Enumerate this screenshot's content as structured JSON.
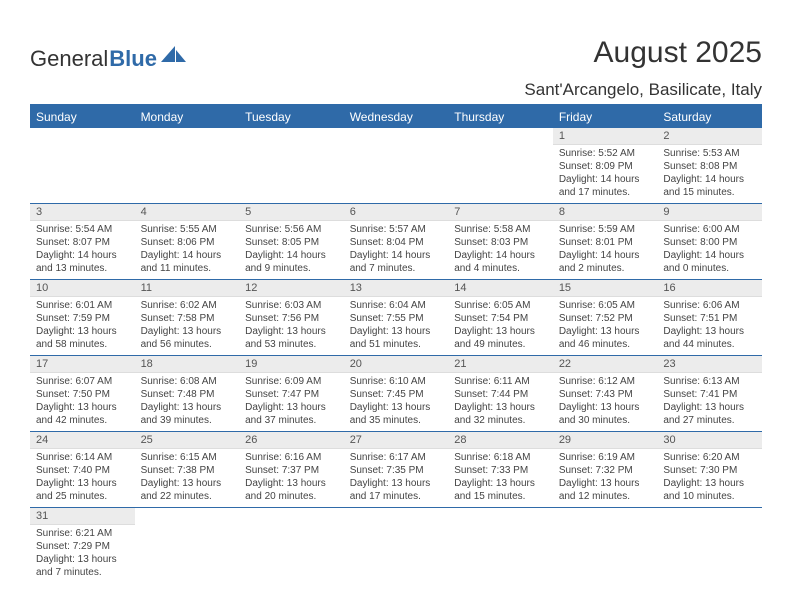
{
  "brand": {
    "part1": "General",
    "part2": "Blue"
  },
  "title": "August 2025",
  "location": "Sant'Arcangelo, Basilicate, Italy",
  "colors": {
    "header_bg": "#2f6aa8",
    "header_fg": "#ffffff",
    "daynum_bg": "#ececec",
    "border": "#2f6aa8"
  },
  "dayHeaders": [
    "Sunday",
    "Monday",
    "Tuesday",
    "Wednesday",
    "Thursday",
    "Friday",
    "Saturday"
  ],
  "weeks": [
    [
      {
        "empty": true
      },
      {
        "empty": true
      },
      {
        "empty": true
      },
      {
        "empty": true
      },
      {
        "empty": true
      },
      {
        "num": "1",
        "sunrise": "Sunrise: 5:52 AM",
        "sunset": "Sunset: 8:09 PM",
        "daylight": "Daylight: 14 hours and 17 minutes."
      },
      {
        "num": "2",
        "sunrise": "Sunrise: 5:53 AM",
        "sunset": "Sunset: 8:08 PM",
        "daylight": "Daylight: 14 hours and 15 minutes."
      }
    ],
    [
      {
        "num": "3",
        "sunrise": "Sunrise: 5:54 AM",
        "sunset": "Sunset: 8:07 PM",
        "daylight": "Daylight: 14 hours and 13 minutes."
      },
      {
        "num": "4",
        "sunrise": "Sunrise: 5:55 AM",
        "sunset": "Sunset: 8:06 PM",
        "daylight": "Daylight: 14 hours and 11 minutes."
      },
      {
        "num": "5",
        "sunrise": "Sunrise: 5:56 AM",
        "sunset": "Sunset: 8:05 PM",
        "daylight": "Daylight: 14 hours and 9 minutes."
      },
      {
        "num": "6",
        "sunrise": "Sunrise: 5:57 AM",
        "sunset": "Sunset: 8:04 PM",
        "daylight": "Daylight: 14 hours and 7 minutes."
      },
      {
        "num": "7",
        "sunrise": "Sunrise: 5:58 AM",
        "sunset": "Sunset: 8:03 PM",
        "daylight": "Daylight: 14 hours and 4 minutes."
      },
      {
        "num": "8",
        "sunrise": "Sunrise: 5:59 AM",
        "sunset": "Sunset: 8:01 PM",
        "daylight": "Daylight: 14 hours and 2 minutes."
      },
      {
        "num": "9",
        "sunrise": "Sunrise: 6:00 AM",
        "sunset": "Sunset: 8:00 PM",
        "daylight": "Daylight: 14 hours and 0 minutes."
      }
    ],
    [
      {
        "num": "10",
        "sunrise": "Sunrise: 6:01 AM",
        "sunset": "Sunset: 7:59 PM",
        "daylight": "Daylight: 13 hours and 58 minutes."
      },
      {
        "num": "11",
        "sunrise": "Sunrise: 6:02 AM",
        "sunset": "Sunset: 7:58 PM",
        "daylight": "Daylight: 13 hours and 56 minutes."
      },
      {
        "num": "12",
        "sunrise": "Sunrise: 6:03 AM",
        "sunset": "Sunset: 7:56 PM",
        "daylight": "Daylight: 13 hours and 53 minutes."
      },
      {
        "num": "13",
        "sunrise": "Sunrise: 6:04 AM",
        "sunset": "Sunset: 7:55 PM",
        "daylight": "Daylight: 13 hours and 51 minutes."
      },
      {
        "num": "14",
        "sunrise": "Sunrise: 6:05 AM",
        "sunset": "Sunset: 7:54 PM",
        "daylight": "Daylight: 13 hours and 49 minutes."
      },
      {
        "num": "15",
        "sunrise": "Sunrise: 6:05 AM",
        "sunset": "Sunset: 7:52 PM",
        "daylight": "Daylight: 13 hours and 46 minutes."
      },
      {
        "num": "16",
        "sunrise": "Sunrise: 6:06 AM",
        "sunset": "Sunset: 7:51 PM",
        "daylight": "Daylight: 13 hours and 44 minutes."
      }
    ],
    [
      {
        "num": "17",
        "sunrise": "Sunrise: 6:07 AM",
        "sunset": "Sunset: 7:50 PM",
        "daylight": "Daylight: 13 hours and 42 minutes."
      },
      {
        "num": "18",
        "sunrise": "Sunrise: 6:08 AM",
        "sunset": "Sunset: 7:48 PM",
        "daylight": "Daylight: 13 hours and 39 minutes."
      },
      {
        "num": "19",
        "sunrise": "Sunrise: 6:09 AM",
        "sunset": "Sunset: 7:47 PM",
        "daylight": "Daylight: 13 hours and 37 minutes."
      },
      {
        "num": "20",
        "sunrise": "Sunrise: 6:10 AM",
        "sunset": "Sunset: 7:45 PM",
        "daylight": "Daylight: 13 hours and 35 minutes."
      },
      {
        "num": "21",
        "sunrise": "Sunrise: 6:11 AM",
        "sunset": "Sunset: 7:44 PM",
        "daylight": "Daylight: 13 hours and 32 minutes."
      },
      {
        "num": "22",
        "sunrise": "Sunrise: 6:12 AM",
        "sunset": "Sunset: 7:43 PM",
        "daylight": "Daylight: 13 hours and 30 minutes."
      },
      {
        "num": "23",
        "sunrise": "Sunrise: 6:13 AM",
        "sunset": "Sunset: 7:41 PM",
        "daylight": "Daylight: 13 hours and 27 minutes."
      }
    ],
    [
      {
        "num": "24",
        "sunrise": "Sunrise: 6:14 AM",
        "sunset": "Sunset: 7:40 PM",
        "daylight": "Daylight: 13 hours and 25 minutes."
      },
      {
        "num": "25",
        "sunrise": "Sunrise: 6:15 AM",
        "sunset": "Sunset: 7:38 PM",
        "daylight": "Daylight: 13 hours and 22 minutes."
      },
      {
        "num": "26",
        "sunrise": "Sunrise: 6:16 AM",
        "sunset": "Sunset: 7:37 PM",
        "daylight": "Daylight: 13 hours and 20 minutes."
      },
      {
        "num": "27",
        "sunrise": "Sunrise: 6:17 AM",
        "sunset": "Sunset: 7:35 PM",
        "daylight": "Daylight: 13 hours and 17 minutes."
      },
      {
        "num": "28",
        "sunrise": "Sunrise: 6:18 AM",
        "sunset": "Sunset: 7:33 PM",
        "daylight": "Daylight: 13 hours and 15 minutes."
      },
      {
        "num": "29",
        "sunrise": "Sunrise: 6:19 AM",
        "sunset": "Sunset: 7:32 PM",
        "daylight": "Daylight: 13 hours and 12 minutes."
      },
      {
        "num": "30",
        "sunrise": "Sunrise: 6:20 AM",
        "sunset": "Sunset: 7:30 PM",
        "daylight": "Daylight: 13 hours and 10 minutes."
      }
    ],
    [
      {
        "num": "31",
        "sunrise": "Sunrise: 6:21 AM",
        "sunset": "Sunset: 7:29 PM",
        "daylight": "Daylight: 13 hours and 7 minutes."
      },
      {
        "empty": true
      },
      {
        "empty": true
      },
      {
        "empty": true
      },
      {
        "empty": true
      },
      {
        "empty": true
      },
      {
        "empty": true
      }
    ]
  ]
}
